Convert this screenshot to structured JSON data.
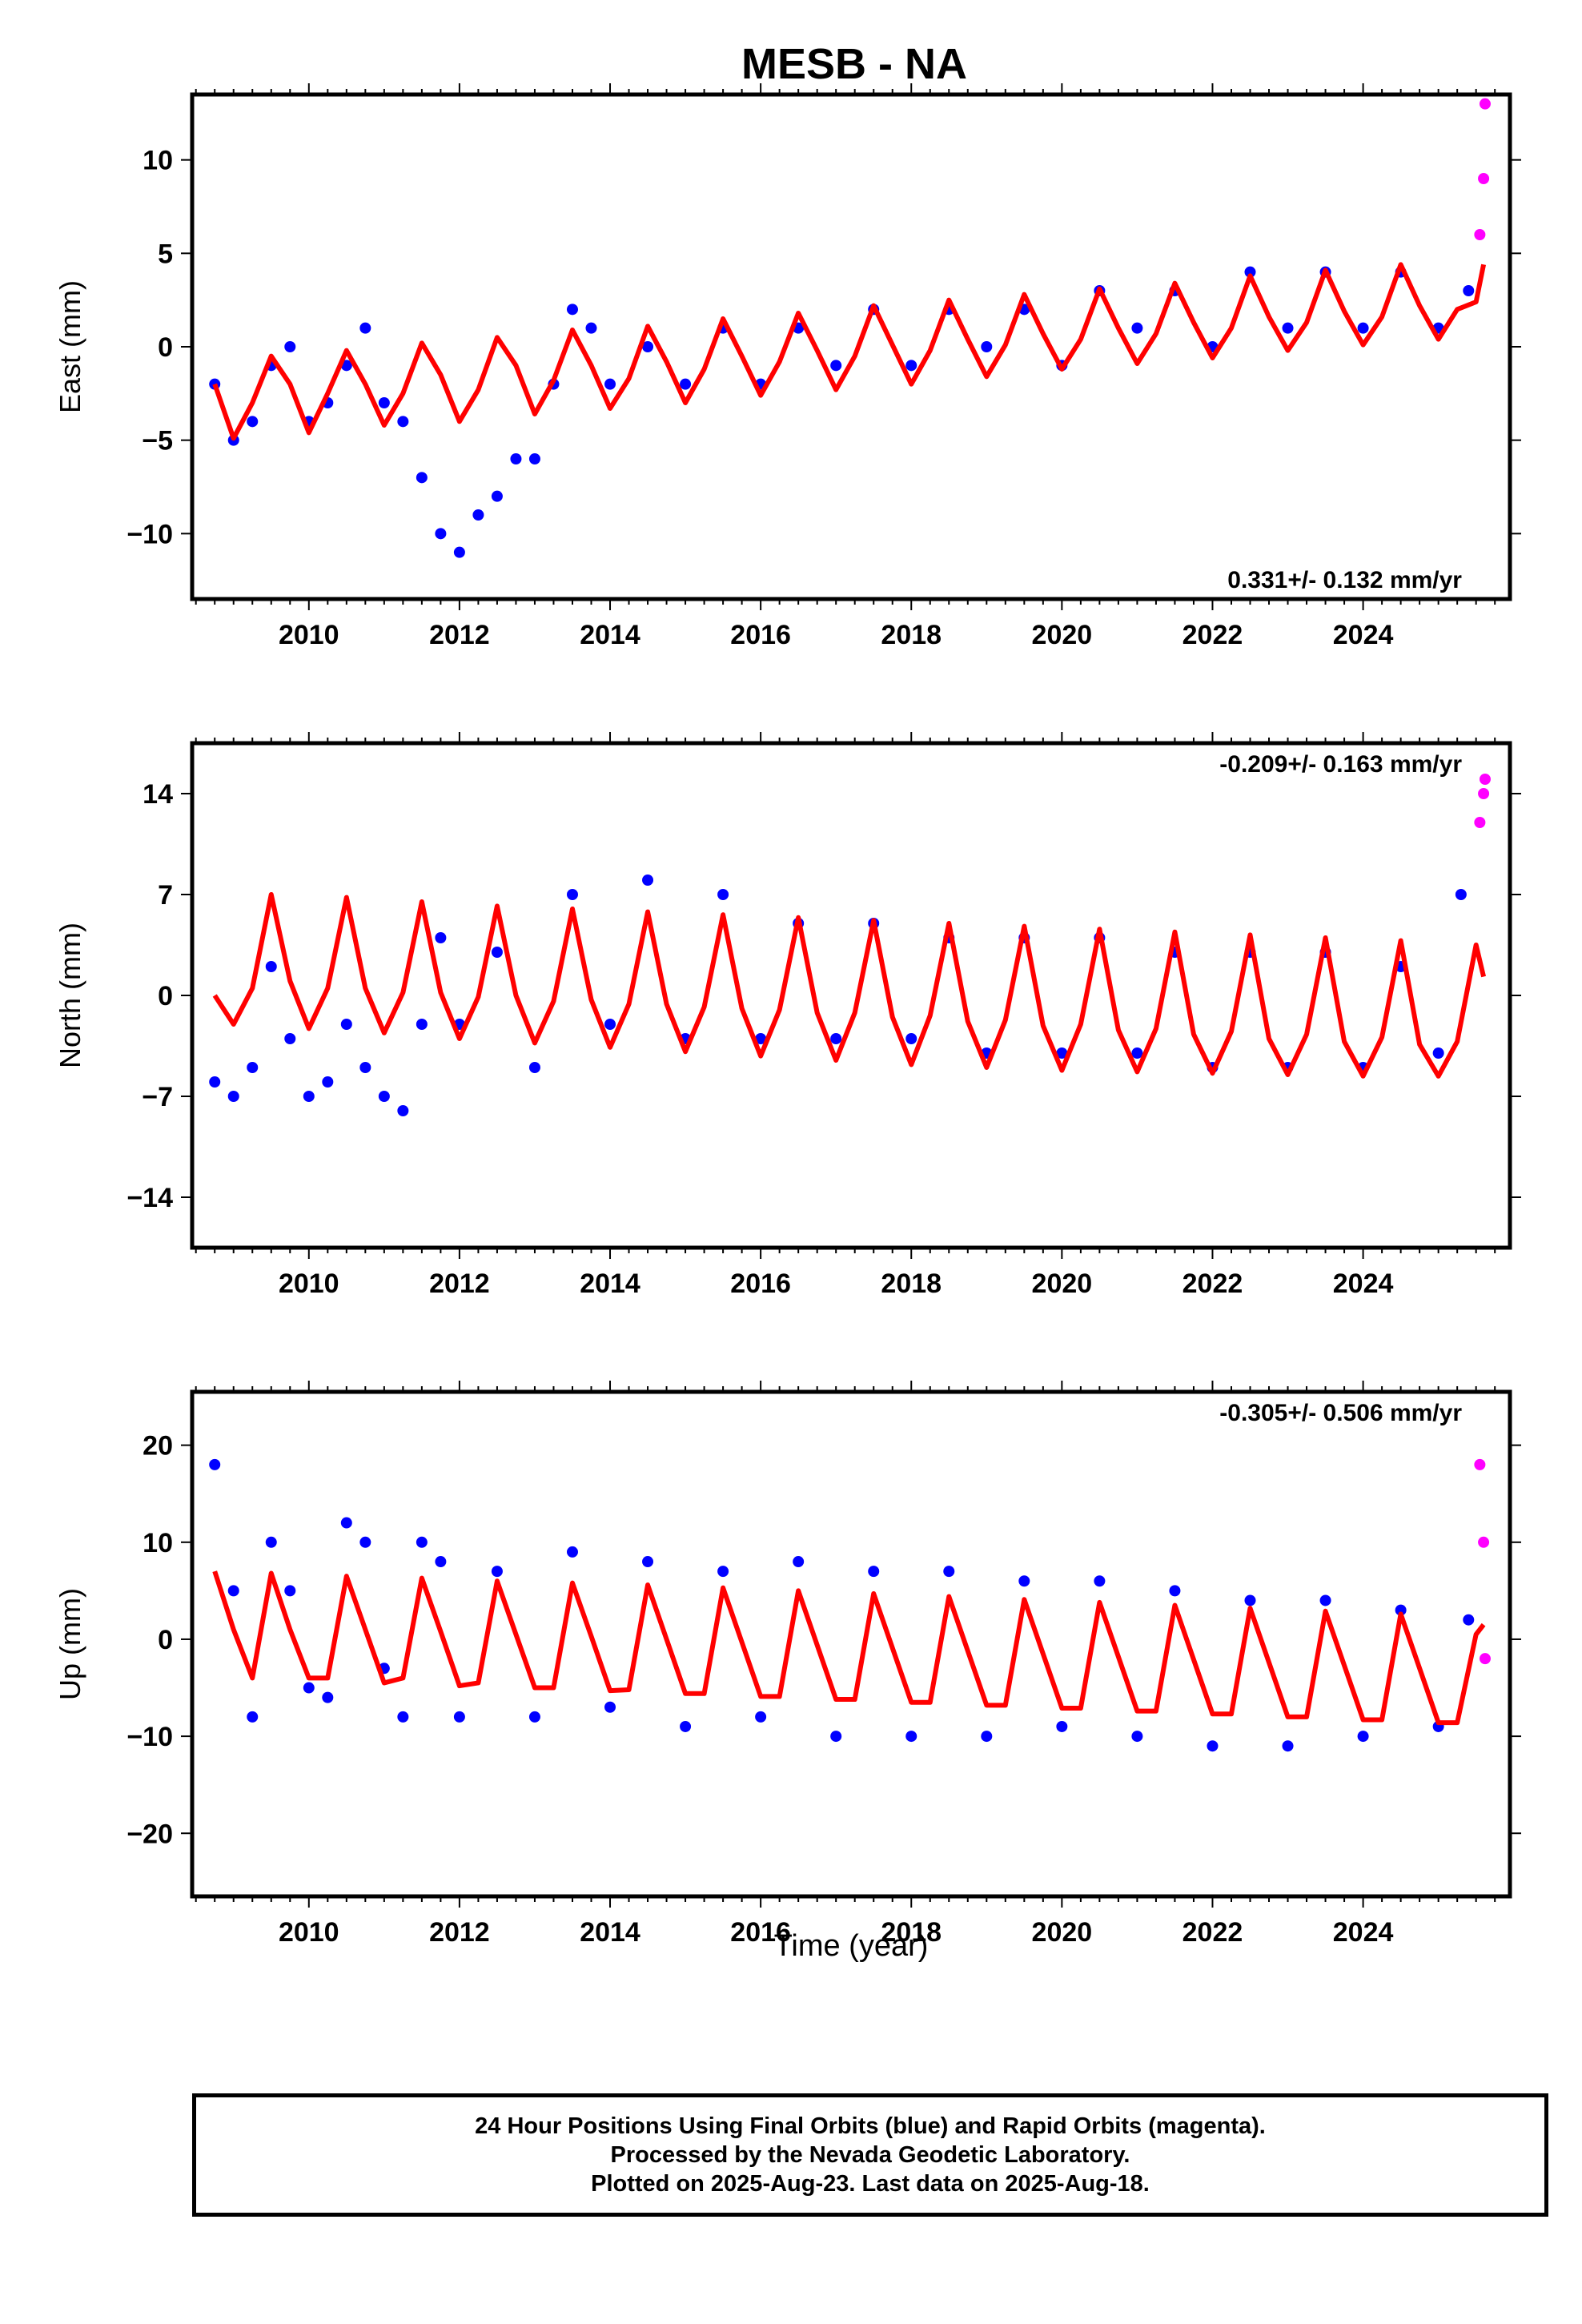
{
  "title": "MESB - NA",
  "colors": {
    "final": "#0000ff",
    "rapid": "#ff00ff",
    "model": "#ff0000"
  },
  "chart_data": [
    {
      "type": "scatter",
      "ylabel": "East (mm)",
      "xlabel": "",
      "xlim": [
        2008.45,
        2025.95
      ],
      "ylim": [
        -13.5,
        13.5
      ],
      "xticks": [
        2010,
        2012,
        2014,
        2016,
        2018,
        2020,
        2022,
        2024
      ],
      "yticks": [
        -10,
        -5,
        0,
        5,
        10
      ],
      "rate_label": "0.331+/- 0.132 mm/yr",
      "rate_position": "bottom-right",
      "series": [
        {
          "color": "#0000ff",
          "x": [
            2008.75,
            2009.0,
            2009.25,
            2009.5,
            2009.75,
            2010.0,
            2010.25,
            2010.5,
            2010.75,
            2011.0,
            2011.25,
            2011.5,
            2011.75,
            2012.0,
            2012.25,
            2012.5,
            2012.75,
            2013.0,
            2013.25,
            2013.5,
            2013.75,
            2014.0,
            2014.5,
            2015.0,
            2015.5,
            2016.0,
            2016.5,
            2017.0,
            2017.5,
            2018.0,
            2018.5,
            2019.0,
            2019.5,
            2020.0,
            2020.5,
            2021.0,
            2021.5,
            2022.0,
            2022.5,
            2023.0,
            2023.5,
            2024.0,
            2024.5,
            2025.0,
            2025.4
          ],
          "y": [
            -2,
            -5,
            -4,
            -1,
            0,
            -4,
            -3,
            -1,
            1,
            -3,
            -4,
            -7,
            -10,
            -11,
            -9,
            -8,
            -6,
            -6,
            -2,
            2,
            1,
            -2,
            0,
            -2,
            1,
            -2,
            1,
            -1,
            2,
            -1,
            2,
            0,
            2,
            -1,
            3,
            1,
            3,
            0,
            4,
            1,
            4,
            1,
            4,
            1,
            3
          ]
        },
        {
          "color": "#ff00ff",
          "x": [
            2025.55,
            2025.6,
            2025.62
          ],
          "y": [
            6,
            9,
            13
          ]
        }
      ],
      "model": {
        "color": "#ff0000",
        "x": [
          2008.75,
          2009.0,
          2009.25,
          2009.5,
          2009.75,
          2010.0,
          2010.25,
          2010.5,
          2010.75,
          2011.0,
          2011.25,
          2011.5,
          2011.75,
          2012.0,
          2012.25,
          2012.5,
          2012.75,
          2013.0,
          2013.25,
          2013.5,
          2013.75,
          2014.0,
          2014.25,
          2014.5,
          2014.75,
          2015.0,
          2015.25,
          2015.5,
          2015.75,
          2016.0,
          2016.25,
          2016.5,
          2016.75,
          2017.0,
          2017.25,
          2017.5,
          2017.75,
          2018.0,
          2018.25,
          2018.5,
          2018.75,
          2019.0,
          2019.25,
          2019.5,
          2019.75,
          2020.0,
          2020.25,
          2020.5,
          2020.75,
          2021.0,
          2021.25,
          2021.5,
          2021.75,
          2022.0,
          2022.25,
          2022.5,
          2022.75,
          2023.0,
          2023.25,
          2023.5,
          2023.75,
          2024.0,
          2024.25,
          2024.5,
          2024.75,
          2025.0,
          2025.25,
          2025.5,
          2025.6
        ],
        "y": [
          -2,
          -4.9,
          -3,
          -0.5,
          -2,
          -4.6,
          -2.5,
          -0.2,
          -2,
          -4.2,
          -2.5,
          0.2,
          -1.5,
          -4,
          -2.3,
          0.5,
          -1,
          -3.6,
          -1.8,
          0.9,
          -1,
          -3.3,
          -1.7,
          1.1,
          -0.8,
          -3,
          -1.2,
          1.5,
          -0.5,
          -2.6,
          -0.8,
          1.8,
          -0.2,
          -2.3,
          -0.5,
          2.2,
          0.1,
          -2,
          -0.2,
          2.5,
          0.4,
          -1.6,
          0.1,
          2.8,
          0.7,
          -1.2,
          0.4,
          3.1,
          1,
          -0.9,
          0.7,
          3.4,
          1.3,
          -0.6,
          1,
          3.8,
          1.6,
          -0.2,
          1.3,
          4.1,
          1.9,
          0.1,
          1.6,
          4.4,
          2.2,
          0.4,
          2,
          2.4,
          4.4
        ]
      }
    },
    {
      "type": "scatter",
      "ylabel": "North (mm)",
      "xlabel": "",
      "xlim": [
        2008.45,
        2025.95
      ],
      "ylim": [
        -17.5,
        17.5
      ],
      "xticks": [
        2010,
        2012,
        2014,
        2016,
        2018,
        2020,
        2022,
        2024
      ],
      "yticks": [
        -14,
        -7,
        0,
        7,
        14
      ],
      "rate_label": "-0.209+/- 0.163 mm/yr",
      "rate_position": "top-right",
      "series": [
        {
          "color": "#0000ff",
          "x": [
            2008.75,
            2009.0,
            2009.25,
            2009.5,
            2009.75,
            2010.0,
            2010.25,
            2010.5,
            2010.75,
            2011.0,
            2011.25,
            2011.5,
            2011.75,
            2012.0,
            2012.5,
            2013.0,
            2013.5,
            2014.0,
            2014.5,
            2015.0,
            2015.5,
            2016.0,
            2016.5,
            2017.0,
            2017.5,
            2018.0,
            2018.5,
            2019.0,
            2019.5,
            2020.0,
            2020.5,
            2021.0,
            2021.5,
            2022.0,
            2022.5,
            2023.0,
            2023.5,
            2024.0,
            2024.5,
            2025.0,
            2025.3
          ],
          "y": [
            -6,
            -7,
            -5,
            2,
            -3,
            -7,
            -6,
            -2,
            -5,
            -7,
            -8,
            -2,
            4,
            -2,
            3,
            -5,
            7,
            -2,
            8,
            -3,
            7,
            -3,
            5,
            -3,
            5,
            -3,
            4,
            -4,
            4,
            -4,
            4,
            -4,
            3,
            -5,
            3,
            -5,
            3,
            -5,
            2,
            -4,
            7
          ]
        },
        {
          "color": "#ff00ff",
          "x": [
            2025.55,
            2025.6,
            2025.62
          ],
          "y": [
            12,
            14,
            15
          ]
        }
      ],
      "model": {
        "color": "#ff0000",
        "x": [
          2008.75,
          2009.0,
          2009.25,
          2009.5,
          2009.75,
          2010.0,
          2010.25,
          2010.5,
          2010.75,
          2011.0,
          2011.25,
          2011.5,
          2011.75,
          2012.0,
          2012.25,
          2012.5,
          2012.75,
          2013.0,
          2013.25,
          2013.5,
          2013.75,
          2014.0,
          2014.25,
          2014.5,
          2014.75,
          2015.0,
          2015.25,
          2015.5,
          2015.75,
          2016.0,
          2016.25,
          2016.5,
          2016.75,
          2017.0,
          2017.25,
          2017.5,
          2017.75,
          2018.0,
          2018.25,
          2018.5,
          2018.75,
          2019.0,
          2019.25,
          2019.5,
          2019.75,
          2020.0,
          2020.25,
          2020.5,
          2020.75,
          2021.0,
          2021.25,
          2021.5,
          2021.75,
          2022.0,
          2022.25,
          2022.5,
          2022.75,
          2023.0,
          2023.25,
          2023.5,
          2023.75,
          2024.0,
          2024.25,
          2024.5,
          2024.75,
          2025.0,
          2025.25,
          2025.5,
          2025.6
        ],
        "y": [
          0,
          -2,
          0.5,
          7,
          1,
          -2.3,
          0.5,
          6.8,
          0.5,
          -2.6,
          0.2,
          6.5,
          0.2,
          -3,
          -0.1,
          6.2,
          0,
          -3.3,
          -0.4,
          6,
          -0.3,
          -3.6,
          -0.6,
          5.8,
          -0.6,
          -3.9,
          -0.8,
          5.6,
          -0.9,
          -4.2,
          -1,
          5.4,
          -1.2,
          -4.5,
          -1.2,
          5.2,
          -1.5,
          -4.8,
          -1.4,
          5,
          -1.8,
          -5,
          -1.7,
          4.8,
          -2.1,
          -5.2,
          -2,
          4.6,
          -2.4,
          -5.3,
          -2.3,
          4.4,
          -2.7,
          -5.4,
          -2.5,
          4.2,
          -3,
          -5.5,
          -2.7,
          4,
          -3.2,
          -5.6,
          -2.9,
          3.8,
          -3.4,
          -5.6,
          -3.2,
          3.5,
          1.3
        ]
      }
    },
    {
      "type": "scatter",
      "ylabel": "Up (mm)",
      "xlabel": "Time (year)",
      "xlim": [
        2008.45,
        2025.95
      ],
      "ylim": [
        -26.5,
        25.5
      ],
      "xticks": [
        2010,
        2012,
        2014,
        2016,
        2018,
        2020,
        2022,
        2024
      ],
      "yticks": [
        -20,
        -10,
        0,
        10,
        20
      ],
      "rate_label": "-0.305+/- 0.506 mm/yr",
      "rate_position": "top-right",
      "series": [
        {
          "color": "#0000ff",
          "x": [
            2008.75,
            2009.0,
            2009.25,
            2009.5,
            2009.75,
            2010.0,
            2010.25,
            2010.5,
            2010.75,
            2011.0,
            2011.25,
            2011.5,
            2011.75,
            2012.0,
            2012.5,
            2013.0,
            2013.5,
            2014.0,
            2014.5,
            2015.0,
            2015.5,
            2016.0,
            2016.5,
            2017.0,
            2017.5,
            2018.0,
            2018.5,
            2019.0,
            2019.5,
            2020.0,
            2020.5,
            2021.0,
            2021.5,
            2022.0,
            2022.5,
            2023.0,
            2023.5,
            2024.0,
            2024.5,
            2025.0,
            2025.4
          ],
          "y": [
            18,
            5,
            -8,
            10,
            5,
            -5,
            -6,
            12,
            10,
            -3,
            -8,
            10,
            8,
            -8,
            7,
            -8,
            9,
            -7,
            8,
            -9,
            7,
            -8,
            8,
            -10,
            7,
            -10,
            7,
            -10,
            6,
            -9,
            6,
            -10,
            5,
            -11,
            4,
            -11,
            4,
            -10,
            3,
            -9,
            2
          ]
        },
        {
          "color": "#ff00ff",
          "x": [
            2025.55,
            2025.6,
            2025.62
          ],
          "y": [
            18,
            10,
            -2
          ]
        }
      ],
      "model": {
        "color": "#ff0000",
        "x": [
          2008.75,
          2009.0,
          2009.25,
          2009.5,
          2009.75,
          2010.0,
          2010.25,
          2010.5,
          2010.75,
          2011.0,
          2011.25,
          2011.5,
          2011.75,
          2012.0,
          2012.25,
          2012.5,
          2012.75,
          2013.0,
          2013.25,
          2013.5,
          2013.75,
          2014.0,
          2014.25,
          2014.5,
          2014.75,
          2015.0,
          2015.25,
          2015.5,
          2015.75,
          2016.0,
          2016.25,
          2016.5,
          2016.75,
          2017.0,
          2017.25,
          2017.5,
          2017.75,
          2018.0,
          2018.25,
          2018.5,
          2018.75,
          2019.0,
          2019.25,
          2019.5,
          2019.75,
          2020.0,
          2020.25,
          2020.5,
          2020.75,
          2021.0,
          2021.25,
          2021.5,
          2021.75,
          2022.0,
          2022.25,
          2022.5,
          2022.75,
          2023.0,
          2023.25,
          2023.5,
          2023.75,
          2024.0,
          2024.25,
          2024.5,
          2024.75,
          2025.0,
          2025.25,
          2025.5,
          2025.6
        ],
        "y": [
          7,
          1,
          -4,
          6.8,
          1,
          -4,
          -4,
          6.5,
          1,
          -4.5,
          -4,
          6.3,
          0.8,
          -4.8,
          -4.5,
          6,
          0.5,
          -5,
          -5,
          5.8,
          0.3,
          -5.3,
          -5.2,
          5.6,
          0,
          -5.6,
          -5.6,
          5.3,
          -0.3,
          -5.9,
          -5.9,
          5,
          -0.6,
          -6.2,
          -6.2,
          4.7,
          -0.9,
          -6.5,
          -6.5,
          4.4,
          -1.2,
          -6.8,
          -6.8,
          4.1,
          -1.5,
          -7.1,
          -7.1,
          3.8,
          -1.8,
          -7.4,
          -7.4,
          3.5,
          -2.1,
          -7.7,
          -7.7,
          3.2,
          -2.4,
          -8,
          -8,
          2.9,
          -2.7,
          -8.3,
          -8.3,
          2.6,
          -3,
          -8.6,
          -8.6,
          0.5,
          1.5
        ]
      }
    }
  ],
  "footer": {
    "line1": "24 Hour Positions Using Final Orbits (blue) and Rapid Orbits (magenta).",
    "line2": "Processed by the Nevada Geodetic Laboratory.",
    "line3": "Plotted on 2025-Aug-23. Last data on 2025-Aug-18."
  }
}
